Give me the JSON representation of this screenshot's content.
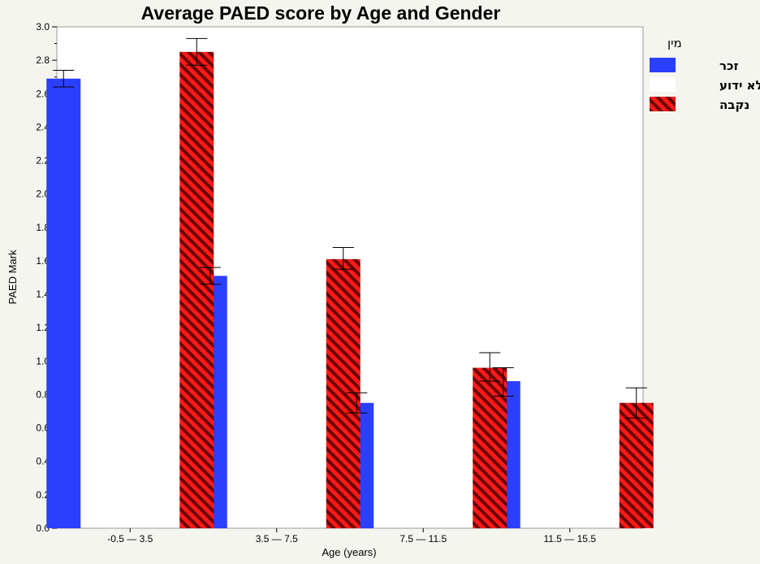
{
  "chart_data": {
    "type": "bar",
    "title": "Average PAED score by Age and Gender",
    "xlabel": "Age (years)",
    "ylabel": "PAED Mark",
    "ylim": [
      0,
      3.0
    ],
    "yticks": [
      "0.0",
      "0.2",
      "0.4",
      "0.6",
      "0.8",
      "1.0",
      "1.2",
      "1.4",
      "1.6",
      "1.8",
      "2.0",
      "2.2",
      "2.4",
      "2.6",
      "2.8",
      "3.0"
    ],
    "categories": [
      "-0.5 — 3.5",
      "3.5 — 7.5",
      "7.5 — 11.5",
      "11.5 — 15.5"
    ],
    "legend_title": "מין",
    "legend_position": "right",
    "grid": false,
    "series": [
      {
        "name": "זכר",
        "color": "#2b3fff",
        "pattern": "solid",
        "values": [
          2.69,
          1.51,
          0.75,
          0.88
        ],
        "error_low": [
          2.64,
          1.46,
          0.69,
          0.79
        ],
        "error_high": [
          2.74,
          1.56,
          0.81,
          0.96
        ]
      },
      {
        "name": "לא ידוע",
        "color": "#ffffff",
        "pattern": "none",
        "values": [
          null,
          null,
          null,
          null
        ],
        "error_low": [
          null,
          null,
          null,
          null
        ],
        "error_high": [
          null,
          null,
          null,
          null
        ]
      },
      {
        "name": "נקבה",
        "color": "#ff1a1a",
        "stripe_color": "#6b0000",
        "pattern": "diagonal-stripes",
        "values": [
          2.85,
          1.61,
          0.96,
          0.75
        ],
        "error_low": [
          2.77,
          1.55,
          0.88,
          0.66
        ],
        "error_high": [
          2.93,
          1.68,
          1.05,
          0.84
        ]
      }
    ]
  }
}
